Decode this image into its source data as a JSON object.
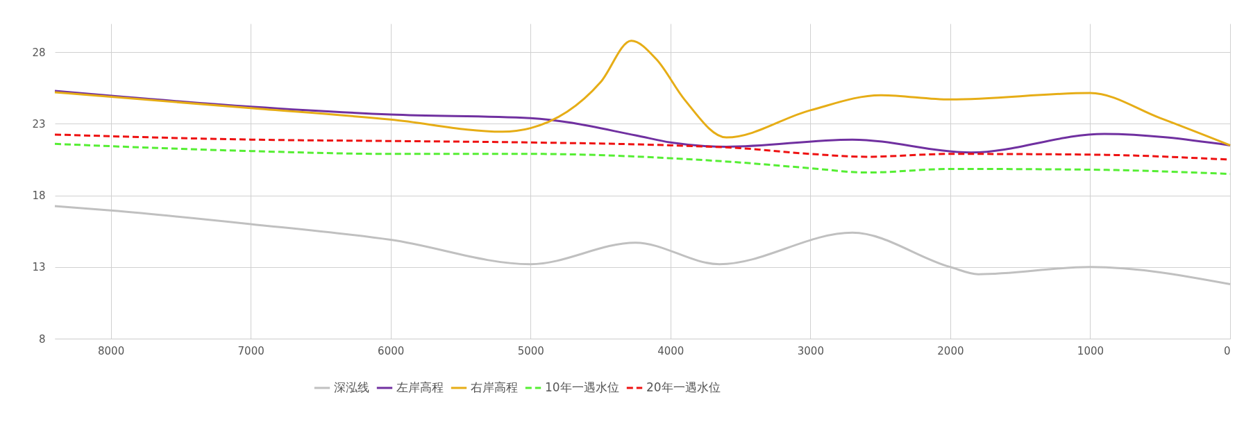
{
  "chart_data": {
    "type": "line",
    "xlim": [
      8400,
      0
    ],
    "xticks": [
      8000,
      7000,
      6000,
      5000,
      4000,
      3000,
      2000,
      1000,
      0
    ],
    "ylim": [
      8,
      30
    ],
    "yticks": [
      8,
      13,
      18,
      23,
      28
    ],
    "grid": true,
    "legend": "bottom",
    "marker": "none",
    "series": [
      {
        "name": "深泓线",
        "color": "#c0c0c0",
        "line_style": "solid",
        "x": [
          8400,
          8000,
          7000,
          6000,
          5000,
          4250,
          3650,
          2700,
          2000,
          1800,
          1000,
          0
        ],
        "values": [
          17.25,
          16.95,
          16.0,
          14.9,
          13.2,
          14.7,
          13.2,
          15.4,
          13.0,
          12.5,
          13.0,
          11.8
        ]
      },
      {
        "name": "左岸高程",
        "color": "#7030a0",
        "line_style": "solid",
        "x": [
          8400,
          7000,
          6000,
          5000,
          4250,
          4000,
          3600,
          2700,
          1850,
          900,
          0
        ],
        "values": [
          25.3,
          24.2,
          23.65,
          23.4,
          22.2,
          21.7,
          21.4,
          21.9,
          21.0,
          22.3,
          21.5
        ]
      },
      {
        "name": "右岸高程",
        "color": "#e6ad16",
        "line_style": "solid",
        "x": [
          8400,
          7000,
          6000,
          5200,
          5000,
          4500,
          4280,
          4100,
          3900,
          3600,
          3000,
          2500,
          2000,
          1000,
          500,
          0
        ],
        "values": [
          25.2,
          24.1,
          23.3,
          22.45,
          22.7,
          25.9,
          28.8,
          27.5,
          24.7,
          22.05,
          23.95,
          25.0,
          24.7,
          25.15,
          23.4,
          21.5
        ]
      },
      {
        "name": "10年一遇水位",
        "color": "#55ee33",
        "line_style": "dashed",
        "x": [
          8400,
          7000,
          6000,
          5000,
          4000,
          3500,
          3000,
          2600,
          2000,
          1000,
          0
        ],
        "values": [
          21.6,
          21.1,
          20.9,
          20.9,
          20.6,
          20.3,
          19.9,
          19.6,
          19.85,
          19.8,
          19.5
        ]
      },
      {
        "name": "20年一遇水位",
        "color": "#ee1111",
        "line_style": "dashed",
        "x": [
          8400,
          7000,
          6000,
          5000,
          4000,
          3500,
          3000,
          2600,
          2000,
          1000,
          0
        ],
        "values": [
          22.25,
          21.9,
          21.8,
          21.7,
          21.5,
          21.3,
          20.9,
          20.7,
          20.9,
          20.85,
          20.5
        ]
      }
    ]
  }
}
